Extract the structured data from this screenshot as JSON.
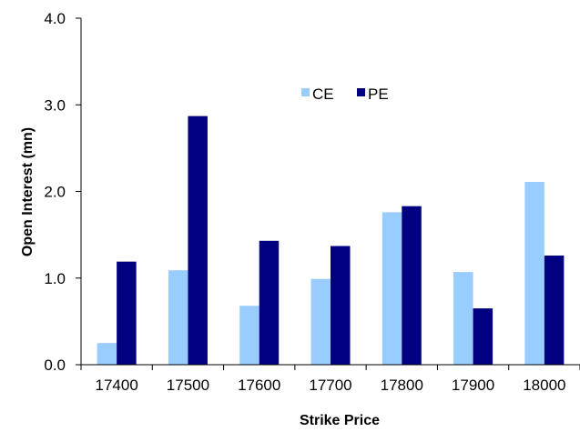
{
  "chart_data": {
    "type": "bar",
    "title": "",
    "xlabel": "Strike Price",
    "ylabel": "Open Interest (mn)",
    "categories": [
      "17400",
      "17500",
      "17600",
      "17700",
      "17800",
      "17900",
      "18000"
    ],
    "series": [
      {
        "name": "CE",
        "color": "#99ccff",
        "values": [
          0.25,
          1.09,
          0.68,
          0.99,
          1.76,
          1.07,
          2.11
        ]
      },
      {
        "name": "PE",
        "color": "#000080",
        "values": [
          1.19,
          2.87,
          1.43,
          1.37,
          1.83,
          0.65,
          1.26
        ]
      }
    ],
    "ylim": [
      0,
      4
    ],
    "y_ticks": [
      "0.0",
      "1.0",
      "2.0",
      "3.0",
      "4.0"
    ],
    "grid": false,
    "legend_position": "top-center"
  }
}
